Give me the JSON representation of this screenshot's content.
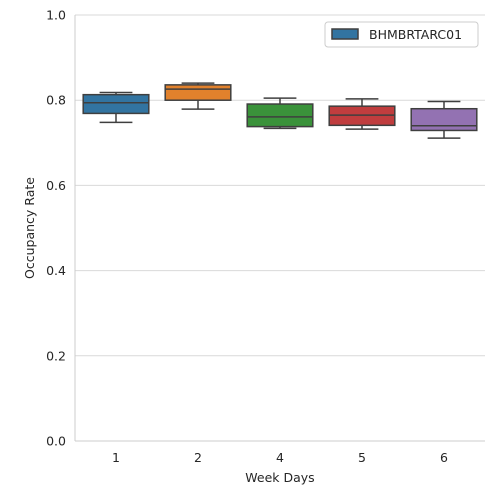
{
  "chart_data": {
    "type": "box",
    "xlabel": "Week Days",
    "ylabel": "Occupancy Rate",
    "ylim": [
      0,
      1.0
    ],
    "yticks": [
      0.0,
      0.2,
      0.4,
      0.6,
      0.8,
      1.0
    ],
    "ytick_labels": [
      "0.0",
      "0.2",
      "0.4",
      "0.6",
      "0.8",
      "1.0"
    ],
    "grid": "horizontal",
    "legend_position": "top-right",
    "legend": [
      {
        "label": "BHMBRTARC01",
        "color": "#3274a1"
      }
    ],
    "categories": [
      "1",
      "2",
      "4",
      "5",
      "6"
    ],
    "boxes": [
      {
        "category": "1",
        "color": "#3274a1",
        "whislo": 0.748,
        "q1": 0.769,
        "med": 0.794,
        "q3": 0.813,
        "whishi": 0.818
      },
      {
        "category": "2",
        "color": "#e1812c",
        "whislo": 0.779,
        "q1": 0.8,
        "med": 0.826,
        "q3": 0.836,
        "whishi": 0.84
      },
      {
        "category": "4",
        "color": "#3a923a",
        "whislo": 0.734,
        "q1": 0.738,
        "med": 0.761,
        "q3": 0.791,
        "whishi": 0.805
      },
      {
        "category": "5",
        "color": "#c03d3e",
        "whislo": 0.732,
        "q1": 0.741,
        "med": 0.765,
        "q3": 0.786,
        "whishi": 0.803
      },
      {
        "category": "6",
        "color": "#9372b2",
        "whislo": 0.711,
        "q1": 0.729,
        "med": 0.74,
        "q3": 0.78,
        "whishi": 0.797
      }
    ]
  }
}
